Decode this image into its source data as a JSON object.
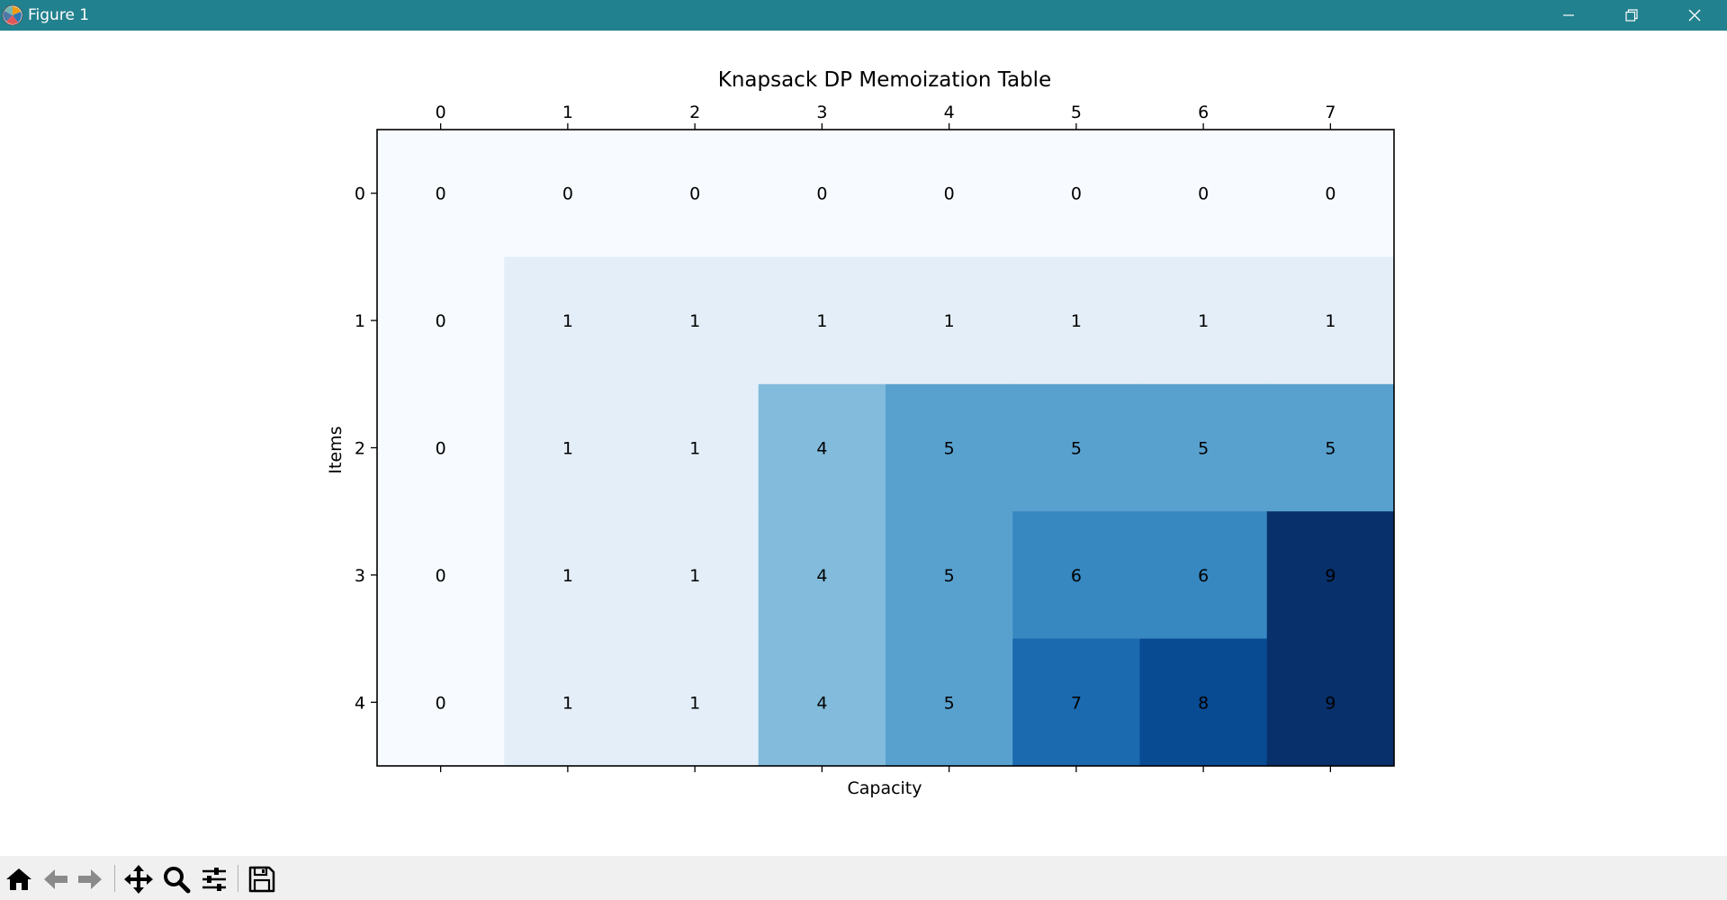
{
  "window": {
    "title": "Figure 1",
    "app_icon": "matplotlib-logo-icon",
    "controls": [
      "minimize-icon",
      "restore-icon",
      "close-icon"
    ],
    "titlebar_color": "#22818e"
  },
  "toolbar": {
    "buttons": [
      {
        "icon": "home-icon"
      },
      {
        "icon": "back-arrow-icon"
      },
      {
        "icon": "forward-arrow-icon"
      },
      {
        "icon": "pan-move-icon"
      },
      {
        "icon": "zoom-magnifier-icon"
      },
      {
        "icon": "configure-subplots-icon"
      },
      {
        "icon": "save-floppy-icon"
      }
    ]
  },
  "chart_data": {
    "type": "heatmap",
    "title": "Knapsack DP Memoization Table",
    "xlabel": "Capacity",
    "ylabel": "Items",
    "x_ticks": [
      "0",
      "1",
      "2",
      "3",
      "4",
      "5",
      "6",
      "7"
    ],
    "y_ticks": [
      "0",
      "1",
      "2",
      "3",
      "4"
    ],
    "x_ticks_position": "top",
    "colormap": "Blues",
    "grid": false,
    "values": [
      [
        0,
        0,
        0,
        0,
        0,
        0,
        0,
        0
      ],
      [
        0,
        1,
        1,
        1,
        1,
        1,
        1,
        1
      ],
      [
        0,
        1,
        1,
        4,
        5,
        5,
        5,
        5
      ],
      [
        0,
        1,
        1,
        4,
        5,
        6,
        6,
        9
      ],
      [
        0,
        1,
        1,
        4,
        5,
        7,
        8,
        9
      ]
    ],
    "colors": {
      "0": "#f7fbff",
      "1": "#e3eef9",
      "4": "#82bbdb",
      "5": "#58a1cf",
      "6": "#3787c0",
      "7": "#1b69af",
      "8": "#084b93",
      "9": "#08306b"
    }
  }
}
